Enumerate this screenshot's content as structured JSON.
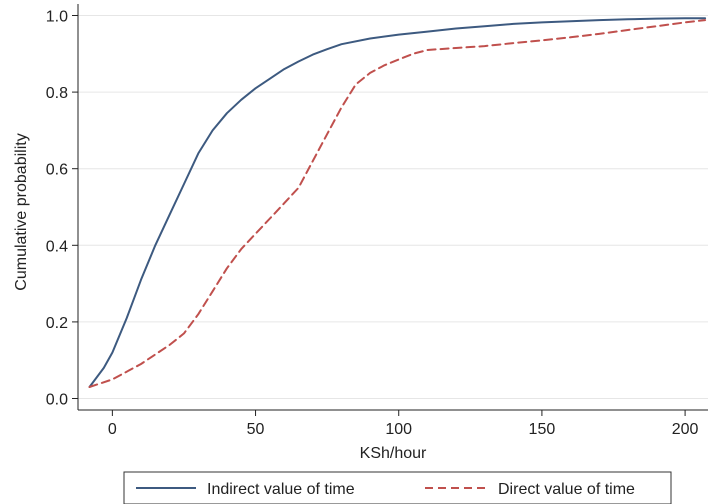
{
  "chart_data": {
    "type": "line",
    "xlabel": "KSh/hour",
    "ylabel": "Cumulative probability",
    "xlim": [
      -12,
      208
    ],
    "ylim": [
      -0.03,
      1.03
    ],
    "x_ticks": [
      "0",
      "50",
      "100",
      "150",
      "200"
    ],
    "y_ticks": [
      "0.0",
      "0.2",
      "0.4",
      "0.6",
      "0.8",
      "1.0"
    ],
    "grid": "horizontal",
    "legend_position": "bottom",
    "series": [
      {
        "name": "Indirect value of time",
        "color": "#3d5a80",
        "dash": "solid",
        "points": [
          [
            -8,
            0.03
          ],
          [
            -3,
            0.08
          ],
          [
            0,
            0.12
          ],
          [
            5,
            0.21
          ],
          [
            10,
            0.31
          ],
          [
            15,
            0.4
          ],
          [
            20,
            0.48
          ],
          [
            25,
            0.56
          ],
          [
            30,
            0.64
          ],
          [
            35,
            0.7
          ],
          [
            40,
            0.745
          ],
          [
            45,
            0.78
          ],
          [
            50,
            0.81
          ],
          [
            55,
            0.835
          ],
          [
            60,
            0.86
          ],
          [
            65,
            0.88
          ],
          [
            70,
            0.898
          ],
          [
            75,
            0.912
          ],
          [
            80,
            0.925
          ],
          [
            90,
            0.94
          ],
          [
            100,
            0.95
          ],
          [
            110,
            0.958
          ],
          [
            120,
            0.966
          ],
          [
            130,
            0.972
          ],
          [
            140,
            0.978
          ],
          [
            150,
            0.982
          ],
          [
            160,
            0.985
          ],
          [
            170,
            0.988
          ],
          [
            180,
            0.99
          ],
          [
            190,
            0.992
          ],
          [
            200,
            0.993
          ],
          [
            207,
            0.993
          ]
        ]
      },
      {
        "name": "Direct value of time",
        "color": "#c0504d",
        "dash": "dashed",
        "points": [
          [
            -8,
            0.03
          ],
          [
            0,
            0.05
          ],
          [
            10,
            0.09
          ],
          [
            20,
            0.14
          ],
          [
            25,
            0.17
          ],
          [
            30,
            0.22
          ],
          [
            35,
            0.28
          ],
          [
            40,
            0.34
          ],
          [
            45,
            0.39
          ],
          [
            50,
            0.43
          ],
          [
            55,
            0.47
          ],
          [
            60,
            0.51
          ],
          [
            65,
            0.55
          ],
          [
            70,
            0.62
          ],
          [
            75,
            0.69
          ],
          [
            80,
            0.76
          ],
          [
            85,
            0.82
          ],
          [
            90,
            0.85
          ],
          [
            95,
            0.87
          ],
          [
            100,
            0.885
          ],
          [
            105,
            0.9
          ],
          [
            110,
            0.91
          ],
          [
            120,
            0.915
          ],
          [
            130,
            0.92
          ],
          [
            140,
            0.928
          ],
          [
            150,
            0.935
          ],
          [
            160,
            0.943
          ],
          [
            170,
            0.952
          ],
          [
            180,
            0.962
          ],
          [
            190,
            0.972
          ],
          [
            200,
            0.982
          ],
          [
            207,
            0.988
          ]
        ]
      }
    ]
  }
}
